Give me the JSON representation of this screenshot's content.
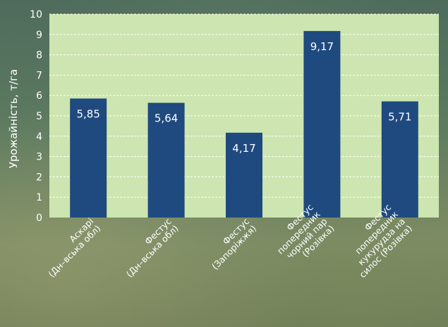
{
  "chart_data": {
    "type": "bar",
    "ylabel": "Урожайність, т/га",
    "ylim": [
      0,
      10
    ],
    "yticks": [
      0,
      1,
      2,
      3,
      4,
      5,
      6,
      7,
      8,
      9,
      10
    ],
    "grid": true,
    "categories": [
      [
        "Аскарі",
        "(Дн–вська обл)"
      ],
      [
        "Фестус",
        "(Дн–вська обл)"
      ],
      [
        "Фестус",
        "(Запоріжжя)"
      ],
      [
        "Фестус",
        "попередник",
        "чорний пар",
        "(Розівка)"
      ],
      [
        "Фестус",
        "попередник",
        "кукурудза на",
        "силос (Розівка)"
      ]
    ],
    "values": [
      5.85,
      5.64,
      4.17,
      9.17,
      5.71
    ],
    "value_labels": [
      "5,85",
      "5,64",
      "4,17",
      "9,17",
      "5,71"
    ],
    "colors": {
      "bar": "#1f4a7f",
      "plot_bg": "#cde5b0",
      "grid": "#ffffff",
      "text": "#ffffff"
    }
  }
}
